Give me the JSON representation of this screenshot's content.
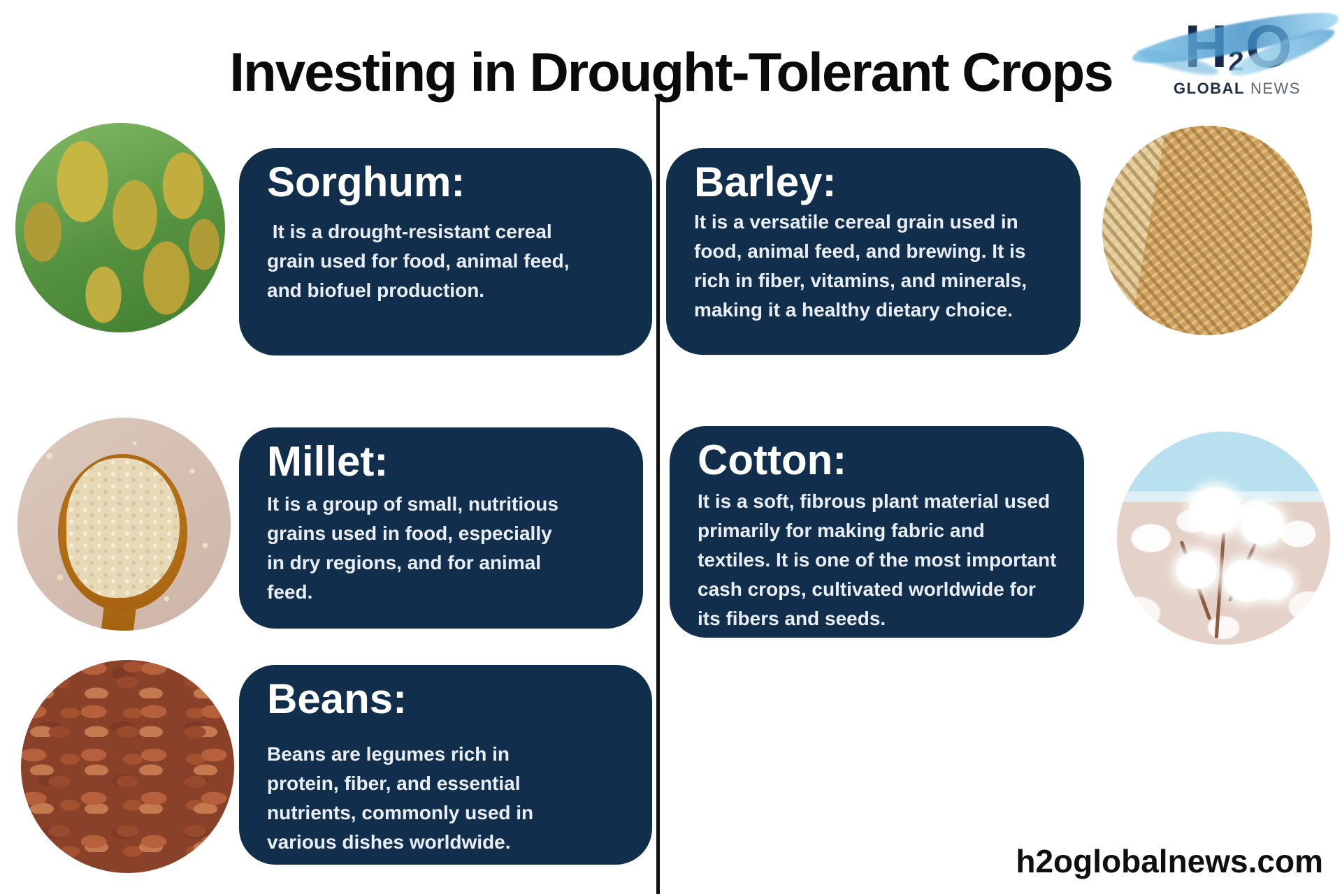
{
  "page": {
    "title": "Investing in Drought-Tolerant Crops",
    "website": "h2oglobalnews.com"
  },
  "logo": {
    "h": "H",
    "sub": "2",
    "o": "O",
    "global": "GLOBAL",
    "news": "NEWS"
  },
  "cards": [
    {
      "key": "sorghum",
      "title": "Sorghum:",
      "body": " It is a drought-resistant cereal grain used for food, animal feed, and biofuel production."
    },
    {
      "key": "barley",
      "title": "Barley:",
      "body": "It is a versatile cereal grain used in food, animal feed, and brewing. It is rich in fiber, vitamins, and minerals, making it a healthy dietary choice."
    },
    {
      "key": "millet",
      "title": "Millet:",
      "body": "It is a group of small, nutritious grains used in food, especially in dry regions, and for animal feed."
    },
    {
      "key": "cotton",
      "title": "Cotton:",
      "body": "It is a soft, fibrous plant material used primarily for making fabric and textiles. It is one of the most important cash crops, cultivated worldwide for its fibers and seeds."
    },
    {
      "key": "beans",
      "title": "Beans:",
      "body": "Beans are legumes rich in protein, fiber, and essential nutrients, commonly used in various dishes worldwide."
    }
  ],
  "photos": {
    "sorghum": "sorghum-plants-photo",
    "barley": "barley-grains-photo",
    "millet": "millet-grains-spoon-photo",
    "cotton": "cotton-field-photo",
    "beans": "red-kidney-beans-photo"
  },
  "colors": {
    "card_navy": "#112f4c",
    "title_black": "#0b0b0b",
    "logo_navy": "#16294d",
    "logo_news_gray": "#5d6673",
    "divider_black": "#101010",
    "card_body_text": "#e9eef4"
  }
}
